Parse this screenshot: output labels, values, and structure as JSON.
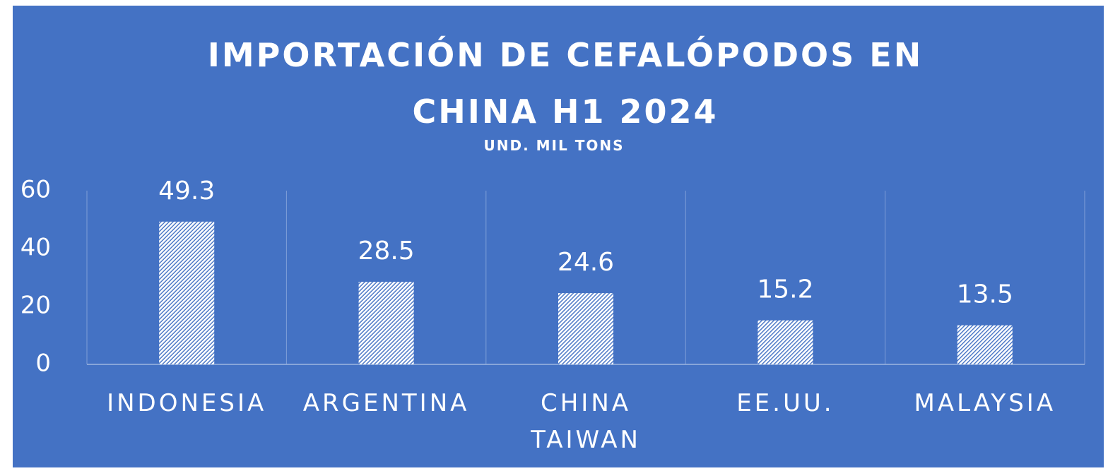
{
  "chart_data": {
    "type": "bar",
    "title": "IMPORTACIÓN DE CEFALÓPODOS EN CHINA H1 2024",
    "subtitle": "UND. MIL TONS",
    "categories": [
      "INDONESIA",
      "ARGENTINA",
      "CHINA TAIWAN",
      "EE.UU.",
      "MALAYSIA"
    ],
    "values": [
      49.3,
      28.5,
      24.6,
      15.2,
      13.5
    ],
    "color": "#ffffff",
    "ylim": [
      0,
      60
    ],
    "yticks": [
      0,
      20,
      40,
      60
    ],
    "grid": false
  }
}
